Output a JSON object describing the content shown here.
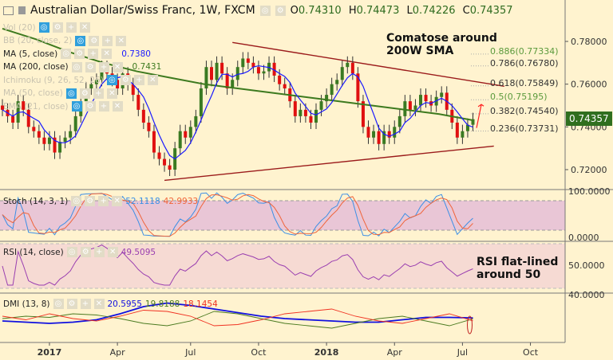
{
  "header": {
    "symbol": "Australian Dollar/Swiss Franc, 1W, FXCM",
    "open_label": "O",
    "open": "0.74310",
    "high_label": "H",
    "high": "0.74473",
    "low_label": "L",
    "low": "0.74226",
    "close_label": "C",
    "close": "0.74357"
  },
  "indicators": [
    {
      "label": "Vol (20)",
      "value": "",
      "hidden": true
    },
    {
      "label": "BB (20, close, 2)",
      "value": "",
      "hidden": true
    },
    {
      "label": "MA (5, close)",
      "value": "0.7380",
      "color": "#1a1aff"
    },
    {
      "label": "MA (200, close)",
      "value": "0.7431",
      "color": "#3d7a1f"
    },
    {
      "label": "Ichimoku (9, 26, 52, 26)",
      "value": "",
      "hidden": true
    },
    {
      "label": "MA (50, close)",
      "value": "",
      "hidden": true
    },
    {
      "label": "EMA (21, close)",
      "value": "",
      "hidden": true
    }
  ],
  "annotations": {
    "top_note": [
      "Comatose around",
      "200W SMA"
    ],
    "rsi_note": [
      "RSI flat-lined",
      "around 50"
    ]
  },
  "fibonacci": [
    {
      "label": "0.886(0.77334)",
      "level": 0.77334,
      "color": "#5b9a3c"
    },
    {
      "label": "0.786(0.76780)",
      "level": 0.7678,
      "color": "#333333"
    },
    {
      "label": "0.618(0.75849)",
      "level": 0.75849,
      "color": "#333333"
    },
    {
      "label": "0.5(0.75195)",
      "level": 0.75195,
      "color": "#5b9a3c"
    },
    {
      "label": "0.382(0.74540)",
      "level": 0.7454,
      "color": "#333333"
    },
    {
      "label": "0.236(0.73731)",
      "level": 0.73731,
      "color": "#333333"
    }
  ],
  "last_price": "0.74357",
  "panes": {
    "stoch": {
      "label": "Stoch (14, 3, 1)",
      "k": "52.1118",
      "d": "42.9933",
      "k_color": "#3b8fe6",
      "d_color": "#f0643a",
      "axis": [
        "100.0000",
        "0.0000"
      ]
    },
    "rsi": {
      "label": "RSI (14, close)",
      "value": "49.5095",
      "color": "#9a3fb0",
      "axis": [
        "50.0000"
      ]
    },
    "dmi": {
      "label": "DMI (13, 8)",
      "adx": "20.5955",
      "plus_di": "19.8188",
      "minus_di": "18.1454",
      "adx_color": "#1010e0",
      "plus_color": "#4a7a20",
      "minus_color": "#f03020",
      "axis": [
        "40.0000"
      ]
    }
  },
  "chart_data": {
    "type": "candlestick",
    "interval": "1W",
    "y_axis_ticks": [
      "0.78000",
      "0.76000",
      "0.74000",
      "0.72000"
    ],
    "ylim": [
      0.708,
      0.795
    ],
    "x_axis_ticks": [
      "2017",
      "Apr",
      "Jul",
      "Oct",
      "2018",
      "Apr",
      "Jul",
      "Oct"
    ],
    "weekly_closes": [
      0.748,
      0.745,
      0.742,
      0.752,
      0.748,
      0.74,
      0.738,
      0.735,
      0.732,
      0.735,
      0.728,
      0.733,
      0.735,
      0.738,
      0.745,
      0.752,
      0.758,
      0.76,
      0.762,
      0.768,
      0.765,
      0.762,
      0.758,
      0.765,
      0.76,
      0.755,
      0.748,
      0.742,
      0.738,
      0.728,
      0.725,
      0.722,
      0.72,
      0.73,
      0.738,
      0.735,
      0.74,
      0.745,
      0.758,
      0.768,
      0.762,
      0.77,
      0.765,
      0.758,
      0.762,
      0.768,
      0.772,
      0.77,
      0.768,
      0.765,
      0.766,
      0.77,
      0.764,
      0.76,
      0.758,
      0.752,
      0.745,
      0.748,
      0.745,
      0.742,
      0.748,
      0.752,
      0.755,
      0.76,
      0.762,
      0.768,
      0.77,
      0.765,
      0.752,
      0.74,
      0.735,
      0.738,
      0.732,
      0.738,
      0.735,
      0.74,
      0.745,
      0.752,
      0.748,
      0.75,
      0.755,
      0.752,
      0.75,
      0.754,
      0.756,
      0.748,
      0.742,
      0.735,
      0.738,
      0.741,
      0.7436
    ],
    "ma200_points": [
      0.786,
      0.781,
      0.775,
      0.77,
      0.766,
      0.763,
      0.76,
      0.758,
      0.756,
      0.754,
      0.752,
      0.75,
      0.748,
      0.746,
      0.7431
    ],
    "trendlines": {
      "upper": [
        0.7795,
        0.759
      ],
      "lower": [
        0.715,
        0.731
      ]
    },
    "dmi_series": {
      "adx": [
        18,
        17,
        16,
        17,
        19,
        24,
        30,
        33,
        31,
        28,
        25,
        22,
        20,
        19,
        18,
        17,
        17,
        19,
        21,
        21,
        20.6
      ],
      "plus_di": [
        20,
        22,
        21,
        24,
        23,
        20,
        16,
        14,
        18,
        26,
        24,
        20,
        16,
        14,
        12,
        16,
        20,
        22,
        18,
        14,
        19.8
      ],
      "minus_di": [
        22,
        19,
        24,
        20,
        18,
        22,
        27,
        26,
        22,
        14,
        15,
        19,
        24,
        26,
        28,
        22,
        18,
        16,
        20,
        24,
        18.1
      ]
    }
  }
}
